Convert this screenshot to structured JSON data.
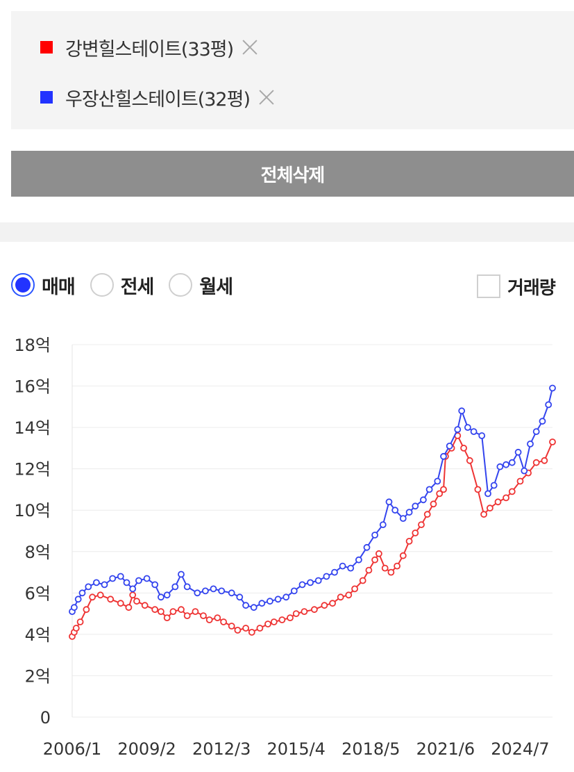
{
  "compare_list": {
    "items": [
      {
        "label": "강변힐스테이트(33평)",
        "color": "#ff0000"
      },
      {
        "label": "우장산힐스테이트(32평)",
        "color": "#2233ff"
      }
    ],
    "clear_all_label": "전체삭제"
  },
  "trade_type": {
    "options": [
      {
        "label": "매매",
        "checked": true
      },
      {
        "label": "전세",
        "checked": false
      },
      {
        "label": "월세",
        "checked": false
      }
    ]
  },
  "volume_toggle": {
    "label": "거래량",
    "checked": false
  },
  "chart_data": {
    "type": "line",
    "title": "",
    "xlabel": "",
    "ylabel": "",
    "ylim": [
      0,
      18
    ],
    "y_ticks": [
      "0",
      "2억",
      "4억",
      "6억",
      "8억",
      "10억",
      "12억",
      "14억",
      "16억",
      "18억"
    ],
    "x_ticks": [
      "2006/1",
      "2009/2",
      "2012/3",
      "2015/4",
      "2018/5",
      "2021/6",
      "2024/7"
    ],
    "x_range": [
      "2006/1",
      "2025/11"
    ],
    "grid": true,
    "legend": "none",
    "series": [
      {
        "name": "강변힐스테이트(33평)",
        "color": "#ee3333",
        "points": [
          [
            "2006/1",
            3.9
          ],
          [
            "2006/2",
            4.1
          ],
          [
            "2006/3",
            4.3
          ],
          [
            "2006/5",
            4.6
          ],
          [
            "2006/8",
            5.2
          ],
          [
            "2006/11",
            5.8
          ],
          [
            "2007/3",
            5.9
          ],
          [
            "2007/8",
            5.7
          ],
          [
            "2008/1",
            5.5
          ],
          [
            "2008/5",
            5.3
          ],
          [
            "2008/7",
            5.9
          ],
          [
            "2008/9",
            5.6
          ],
          [
            "2009/1",
            5.4
          ],
          [
            "2009/6",
            5.2
          ],
          [
            "2009/9",
            5.1
          ],
          [
            "2009/12",
            4.8
          ],
          [
            "2010/3",
            5.1
          ],
          [
            "2010/7",
            5.2
          ],
          [
            "2010/10",
            4.9
          ],
          [
            "2011/2",
            5.1
          ],
          [
            "2011/6",
            4.9
          ],
          [
            "2011/9",
            4.7
          ],
          [
            "2012/1",
            4.8
          ],
          [
            "2012/4",
            4.6
          ],
          [
            "2012/8",
            4.4
          ],
          [
            "2012/11",
            4.2
          ],
          [
            "2013/3",
            4.3
          ],
          [
            "2013/6",
            4.1
          ],
          [
            "2013/10",
            4.3
          ],
          [
            "2014/2",
            4.5
          ],
          [
            "2014/5",
            4.6
          ],
          [
            "2014/9",
            4.7
          ],
          [
            "2015/1",
            4.8
          ],
          [
            "2015/4",
            5.0
          ],
          [
            "2015/8",
            5.1
          ],
          [
            "2016/1",
            5.2
          ],
          [
            "2016/6",
            5.4
          ],
          [
            "2016/10",
            5.5
          ],
          [
            "2017/2",
            5.8
          ],
          [
            "2017/6",
            5.9
          ],
          [
            "2017/9",
            6.2
          ],
          [
            "2018/1",
            6.6
          ],
          [
            "2018/4",
            7.1
          ],
          [
            "2018/7",
            7.6
          ],
          [
            "2018/9",
            7.9
          ],
          [
            "2018/12",
            7.2
          ],
          [
            "2019/3",
            7.0
          ],
          [
            "2019/6",
            7.3
          ],
          [
            "2019/9",
            7.8
          ],
          [
            "2019/12",
            8.5
          ],
          [
            "2020/3",
            8.9
          ],
          [
            "2020/6",
            9.3
          ],
          [
            "2020/9",
            9.8
          ],
          [
            "2020/12",
            10.3
          ],
          [
            "2021/3",
            10.8
          ],
          [
            "2021/5",
            11.0
          ],
          [
            "2021/6",
            12.6
          ],
          [
            "2021/9",
            13.0
          ],
          [
            "2021/12",
            13.6
          ],
          [
            "2022/3",
            13.0
          ],
          [
            "2022/6",
            12.4
          ],
          [
            "2022/10",
            11.0
          ],
          [
            "2023/1",
            9.8
          ],
          [
            "2023/4",
            10.1
          ],
          [
            "2023/8",
            10.4
          ],
          [
            "2023/12",
            10.6
          ],
          [
            "2024/3",
            10.9
          ],
          [
            "2024/7",
            11.4
          ],
          [
            "2024/11",
            11.8
          ],
          [
            "2025/3",
            12.3
          ],
          [
            "2025/7",
            12.4
          ],
          [
            "2025/11",
            13.3
          ]
        ]
      },
      {
        "name": "우장산힐스테이트(32평)",
        "color": "#3344ee",
        "points": [
          [
            "2006/1",
            5.1
          ],
          [
            "2006/2",
            5.3
          ],
          [
            "2006/4",
            5.7
          ],
          [
            "2006/6",
            6.0
          ],
          [
            "2006/9",
            6.3
          ],
          [
            "2007/1",
            6.5
          ],
          [
            "2007/5",
            6.4
          ],
          [
            "2007/9",
            6.7
          ],
          [
            "2008/1",
            6.8
          ],
          [
            "2008/4",
            6.5
          ],
          [
            "2008/7",
            6.2
          ],
          [
            "2008/10",
            6.6
          ],
          [
            "2009/2",
            6.7
          ],
          [
            "2009/6",
            6.4
          ],
          [
            "2009/9",
            5.8
          ],
          [
            "2009/12",
            5.9
          ],
          [
            "2010/4",
            6.3
          ],
          [
            "2010/7",
            6.9
          ],
          [
            "2010/10",
            6.3
          ],
          [
            "2011/3",
            6.0
          ],
          [
            "2011/7",
            6.1
          ],
          [
            "2011/11",
            6.2
          ],
          [
            "2012/3",
            6.1
          ],
          [
            "2012/8",
            6.0
          ],
          [
            "2012/12",
            5.8
          ],
          [
            "2013/3",
            5.4
          ],
          [
            "2013/7",
            5.3
          ],
          [
            "2013/11",
            5.5
          ],
          [
            "2014/3",
            5.6
          ],
          [
            "2014/7",
            5.7
          ],
          [
            "2014/11",
            5.8
          ],
          [
            "2015/3",
            6.1
          ],
          [
            "2015/7",
            6.4
          ],
          [
            "2015/11",
            6.5
          ],
          [
            "2016/3",
            6.6
          ],
          [
            "2016/7",
            6.8
          ],
          [
            "2016/11",
            7.0
          ],
          [
            "2017/3",
            7.3
          ],
          [
            "2017/7",
            7.2
          ],
          [
            "2017/11",
            7.6
          ],
          [
            "2018/3",
            8.2
          ],
          [
            "2018/7",
            8.8
          ],
          [
            "2018/11",
            9.3
          ],
          [
            "2019/2",
            10.4
          ],
          [
            "2019/5",
            10.0
          ],
          [
            "2019/9",
            9.6
          ],
          [
            "2019/12",
            9.9
          ],
          [
            "2020/3",
            10.2
          ],
          [
            "2020/7",
            10.5
          ],
          [
            "2020/10",
            11.0
          ],
          [
            "2021/2",
            11.4
          ],
          [
            "2021/5",
            12.6
          ],
          [
            "2021/8",
            13.1
          ],
          [
            "2021/12",
            13.9
          ],
          [
            "2022/2",
            14.8
          ],
          [
            "2022/5",
            14.0
          ],
          [
            "2022/8",
            13.8
          ],
          [
            "2022/12",
            13.6
          ],
          [
            "2023/3",
            10.8
          ],
          [
            "2023/6",
            11.2
          ],
          [
            "2023/9",
            12.1
          ],
          [
            "2023/12",
            12.2
          ],
          [
            "2024/3",
            12.3
          ],
          [
            "2024/6",
            12.8
          ],
          [
            "2024/9",
            11.9
          ],
          [
            "2024/12",
            13.2
          ],
          [
            "2025/3",
            13.8
          ],
          [
            "2025/6",
            14.3
          ],
          [
            "2025/9",
            15.1
          ],
          [
            "2025/11",
            15.9
          ]
        ]
      }
    ]
  }
}
